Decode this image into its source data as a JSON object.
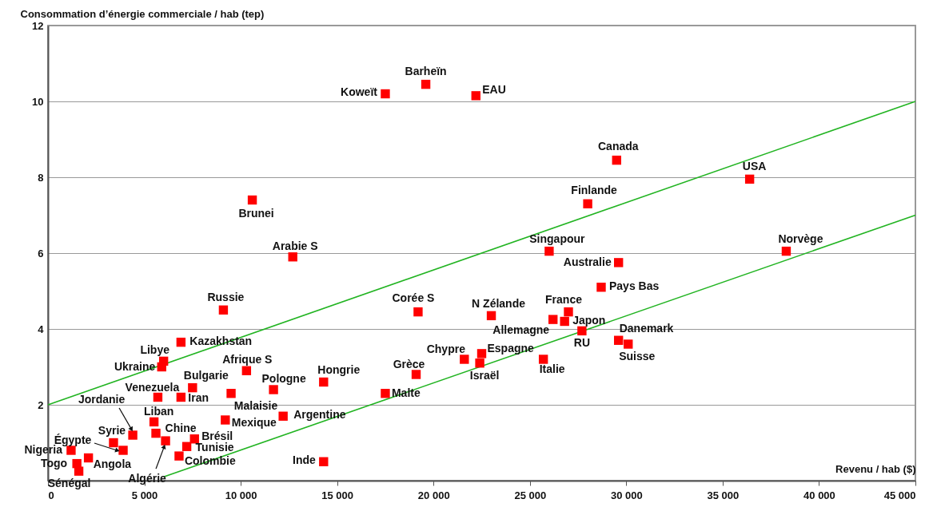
{
  "chart_data": {
    "type": "scatter",
    "xlabel": "Revenu / hab ($)",
    "ylabel": "Consommation d’énergie commerciale / hab (tep)",
    "xlim": [
      0,
      45000
    ],
    "ylim": [
      0,
      12
    ],
    "xticks": [
      0,
      {
        "value": 5000,
        "label": "5 000"
      },
      {
        "value": 10000,
        "label": "10 000"
      },
      {
        "value": 15000,
        "label": "15 000"
      },
      {
        "value": 20000,
        "label": "20 000"
      },
      {
        "value": 25000,
        "label": "25 000"
      },
      {
        "value": 30000,
        "label": "30 000"
      },
      {
        "value": 35000,
        "label": "35 000"
      },
      {
        "value": 40000,
        "label": "40 000"
      },
      {
        "value": 45000,
        "label": "45 000"
      }
    ],
    "yticks": [
      {
        "value": 0,
        "label": null
      },
      2,
      4,
      6,
      8,
      10,
      12
    ],
    "grid": "y",
    "line_style": "solid",
    "series": [
      {
        "marker": "square",
        "color": "#ff0000",
        "x": [
          17500,
          19600,
          22200,
          29500,
          36400,
          28000,
          10600,
          12700,
          26000,
          38300,
          29600,
          28700,
          9100,
          19200,
          23000,
          27000,
          26200,
          26800,
          27700,
          29600,
          30100,
          6900,
          6000,
          5900,
          10300,
          21600,
          22500,
          22400,
          25700,
          14300,
          19100,
          7500,
          11700,
          9500,
          5700,
          6900,
          17500,
          5500,
          9200,
          12200,
          4400,
          3400,
          3900,
          5600,
          6100,
          7600,
          7200,
          6800,
          1200,
          1500,
          2100,
          1600,
          14300
        ],
        "values": [
          10.2,
          10.45,
          10.15,
          8.45,
          7.95,
          7.3,
          7.4,
          5.9,
          6.05,
          6.05,
          5.75,
          5.1,
          4.5,
          4.45,
          4.35,
          4.45,
          4.25,
          4.2,
          3.95,
          3.7,
          3.6,
          3.65,
          3.15,
          3.0,
          2.9,
          3.2,
          3.35,
          3.1,
          3.2,
          2.6,
          2.8,
          2.45,
          2.4,
          2.3,
          2.2,
          2.2,
          2.3,
          1.55,
          1.6,
          1.7,
          1.2,
          1.0,
          0.8,
          1.25,
          1.05,
          1.1,
          0.9,
          0.65,
          0.8,
          0.45,
          0.6,
          0.25,
          0.5
        ]
      },
      {
        "type": "line",
        "color": "#22b422",
        "x": [
          0,
          45000
        ],
        "values": [
          2,
          10
        ]
      },
      {
        "type": "line",
        "color": "#22b422",
        "x": [
          6000,
          45000
        ],
        "values": [
          0.1,
          7
        ]
      }
    ],
    "annotations": [
      {
        "text": "Koweït",
        "x": 17500,
        "y": 10.2
      },
      {
        "text": "Barheïn",
        "x": 19600,
        "y": 10.45
      },
      {
        "text": "EAU",
        "x": 22200,
        "y": 10.15
      },
      {
        "text": "Canada",
        "x": 29500,
        "y": 8.45
      },
      {
        "text": "USA",
        "x": 36400,
        "y": 7.95
      },
      {
        "text": "Finlande",
        "x": 28000,
        "y": 7.3
      },
      {
        "text": "Brunei",
        "x": 10600,
        "y": 7.4
      },
      {
        "text": "Arabie S",
        "x": 12700,
        "y": 5.9
      },
      {
        "text": "Singapour",
        "x": 26000,
        "y": 6.05
      },
      {
        "text": "Norvège",
        "x": 38300,
        "y": 6.05
      },
      {
        "text": "Australie",
        "x": 29600,
        "y": 5.75
      },
      {
        "text": "Pays Bas",
        "x": 28700,
        "y": 5.1
      },
      {
        "text": "Russie",
        "x": 9100,
        "y": 4.5
      },
      {
        "text": "Corée S",
        "x": 19200,
        "y": 4.45
      },
      {
        "text": "N Zélande",
        "x": 23000,
        "y": 4.35
      },
      {
        "text": "France",
        "x": 27000,
        "y": 4.45
      },
      {
        "text": "Allemagne",
        "x": 26200,
        "y": 4.25
      },
      {
        "text": "Japon",
        "x": 26800,
        "y": 4.2
      },
      {
        "text": "RU",
        "x": 27700,
        "y": 3.95
      },
      {
        "text": "Danemark",
        "x": 29600,
        "y": 3.7
      },
      {
        "text": "Suisse",
        "x": 30100,
        "y": 3.6
      },
      {
        "text": "Kazakhstan",
        "x": 6900,
        "y": 3.65
      },
      {
        "text": "Libye",
        "x": 6000,
        "y": 3.15
      },
      {
        "text": "Ukraine",
        "x": 5900,
        "y": 3.0
      },
      {
        "text": "Afrique S",
        "x": 10300,
        "y": 2.9
      },
      {
        "text": "Chypre",
        "x": 21600,
        "y": 3.2
      },
      {
        "text": "Espagne",
        "x": 22500,
        "y": 3.35
      },
      {
        "text": "Israël",
        "x": 22400,
        "y": 3.1
      },
      {
        "text": "Italie",
        "x": 25700,
        "y": 3.2
      },
      {
        "text": "Hongrie",
        "x": 14300,
        "y": 2.6
      },
      {
        "text": "Grèce",
        "x": 19100,
        "y": 2.8
      },
      {
        "text": "Bulgarie",
        "x": 7500,
        "y": 2.45
      },
      {
        "text": "Pologne",
        "x": 11700,
        "y": 2.4
      },
      {
        "text": "Malaisie",
        "x": 9500,
        "y": 2.3
      },
      {
        "text": "Venezuela",
        "x": 5700,
        "y": 2.2
      },
      {
        "text": "Iran",
        "x": 6900,
        "y": 2.2
      },
      {
        "text": "Malte",
        "x": 17500,
        "y": 2.3
      },
      {
        "text": "Liban",
        "x": 5500,
        "y": 1.55
      },
      {
        "text": "Mexique",
        "x": 9200,
        "y": 1.6
      },
      {
        "text": "Argentine",
        "x": 12200,
        "y": 1.7
      },
      {
        "text": "Jordanie",
        "x": 4400,
        "y": 1.2
      },
      {
        "text": "Syrie",
        "x": 3400,
        "y": 1.0
      },
      {
        "text": "Égypte",
        "x": 3900,
        "y": 0.8
      },
      {
        "text": "Chine",
        "x": 5600,
        "y": 1.25
      },
      {
        "text": "Algérie",
        "x": 6100,
        "y": 1.05
      },
      {
        "text": "Brésil",
        "x": 7600,
        "y": 1.1
      },
      {
        "text": "Tunisie",
        "x": 7200,
        "y": 0.9
      },
      {
        "text": "Colombie",
        "x": 6800,
        "y": 0.65
      },
      {
        "text": "Nigeria",
        "x": 1200,
        "y": 0.8
      },
      {
        "text": "Togo",
        "x": 1500,
        "y": 0.45
      },
      {
        "text": "Angola",
        "x": 2100,
        "y": 0.6
      },
      {
        "text": "Sénégal",
        "x": 1600,
        "y": 0.25
      },
      {
        "text": "Inde",
        "x": 14300,
        "y": 0.5
      }
    ]
  }
}
